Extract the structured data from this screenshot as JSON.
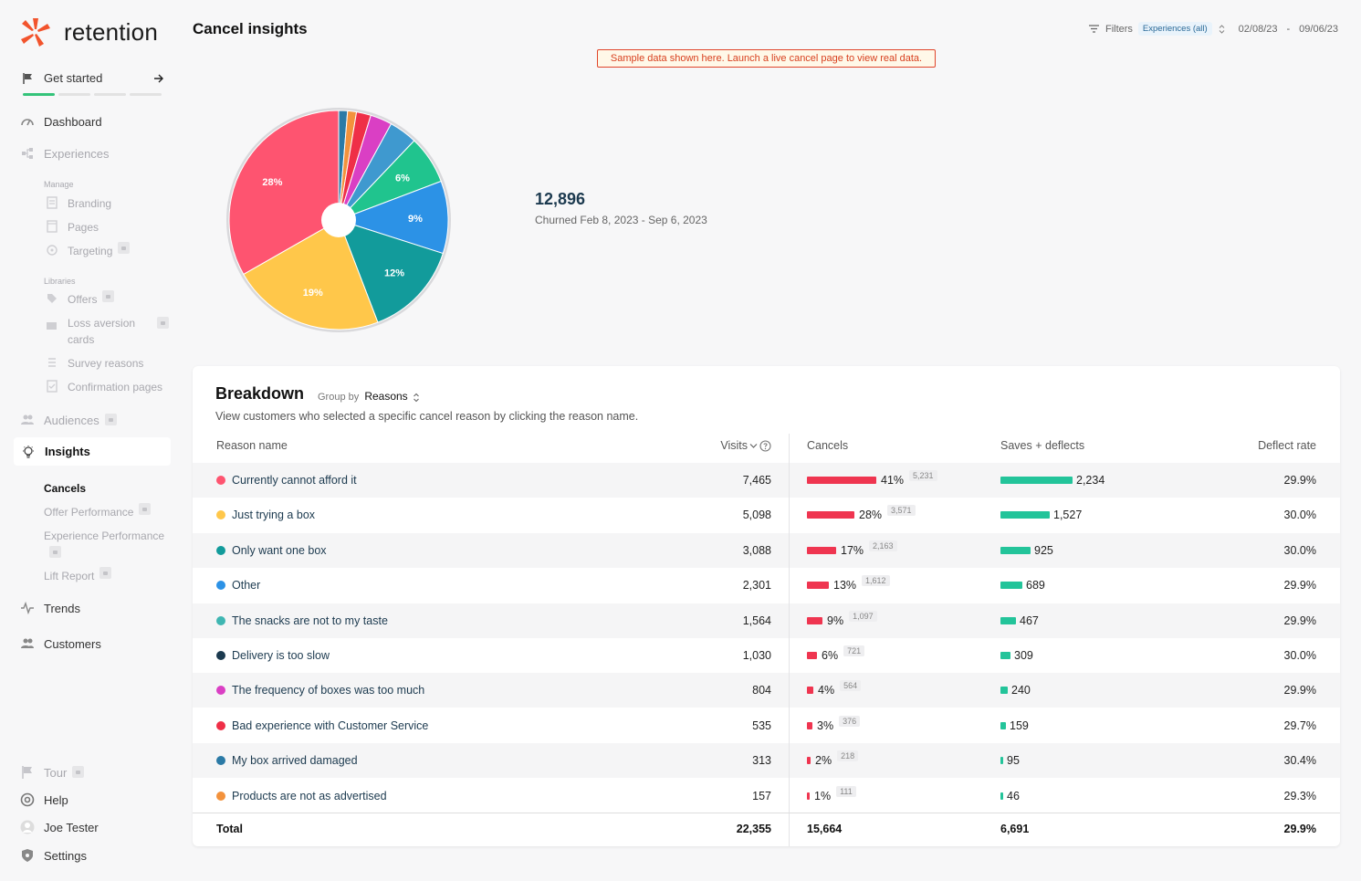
{
  "app": {
    "name": "retention",
    "brand_color": "#f2542d"
  },
  "sidebar": {
    "get_started": "Get started",
    "dashboard": "Dashboard",
    "experiences": "Experiences",
    "manage_label": "Manage",
    "branding": "Branding",
    "pages": "Pages",
    "targeting": "Targeting",
    "libraries_label": "Libraries",
    "offers": "Offers",
    "loss_aversion_1": "Loss aversion",
    "loss_aversion_2": "cards",
    "survey_reasons": "Survey reasons",
    "confirmation_pages": "Confirmation pages",
    "audiences": "Audiences",
    "insights": "Insights",
    "cancels": "Cancels",
    "offer_performance": "Offer Performance",
    "experience_performance": "Experience Performance",
    "lift_report": "Lift Report",
    "trends": "Trends",
    "customers": "Customers",
    "tour": "Tour",
    "help": "Help",
    "user": "Joe Tester",
    "settings": "Settings"
  },
  "header": {
    "title": "Cancel insights",
    "filters_label": "Filters",
    "filter_chip": "Experiences (all)",
    "date_from": "02/08/23",
    "date_sep": "-",
    "date_to": "09/06/23",
    "banner": "Sample data shown here. Launch a live cancel page to view real data."
  },
  "summary": {
    "total": "12,896",
    "subtitle": "Churned Feb 8, 2023 - Sep 6, 2023"
  },
  "chart_data": {
    "type": "pie",
    "slices": [
      {
        "label": "Currently cannot afford it",
        "value": 28,
        "color": "#fe5470",
        "shown_label": "28%"
      },
      {
        "label": "Just trying a box",
        "value": 19,
        "color": "#ffc74a",
        "shown_label": "19%"
      },
      {
        "label": "Only want one box",
        "value": 12,
        "color": "#129b9b",
        "shown_label": "12%"
      },
      {
        "label": "Other",
        "value": 9,
        "color": "#2c92e6",
        "shown_label": "9%"
      },
      {
        "label": "The snacks are not to my taste",
        "value": 6,
        "color": "#20c48e",
        "shown_label": "6%"
      },
      {
        "label": "Delivery is too slow",
        "value": 3.5,
        "color": "#3f99cf",
        "shown_label": ""
      },
      {
        "label": "The frequency of boxes was too much",
        "value": 2.7,
        "color": "#da3fc4",
        "shown_label": ""
      },
      {
        "label": "Bad experience with Customer Service",
        "value": 1.8,
        "color": "#ef2f47",
        "shown_label": ""
      },
      {
        "label": "My box arrived damaged",
        "value": 1.1,
        "color": "#f3923c",
        "shown_label": ""
      },
      {
        "label": "Products are not as advertised",
        "value": 1.1,
        "color": "#2b7aa6",
        "shown_label": ""
      }
    ]
  },
  "breakdown": {
    "title": "Breakdown",
    "group_by_label": "Group by",
    "group_by_value": "Reasons",
    "description": "View customers who selected a specific cancel reason by clicking the reason name.",
    "columns": {
      "reason": "Reason name",
      "visits": "Visits",
      "cancels": "Cancels",
      "saves": "Saves + deflects",
      "deflect": "Deflect rate"
    },
    "rows": [
      {
        "color": "#fe5470",
        "reason": "Currently cannot afford it",
        "visits": "7,465",
        "cancel_pct": "41%",
        "cancel_frac": 0.41,
        "cancel_count": "5,231",
        "saves": "2,234",
        "saves_frac": 1.0,
        "deflect": "29.9%"
      },
      {
        "color": "#ffc74a",
        "reason": "Just trying a box",
        "visits": "5,098",
        "cancel_pct": "28%",
        "cancel_frac": 0.28,
        "cancel_count": "3,571",
        "saves": "1,527",
        "saves_frac": 0.684,
        "deflect": "30.0%"
      },
      {
        "color": "#129b9b",
        "reason": "Only want one box",
        "visits": "3,088",
        "cancel_pct": "17%",
        "cancel_frac": 0.17,
        "cancel_count": "2,163",
        "saves": "925",
        "saves_frac": 0.414,
        "deflect": "30.0%"
      },
      {
        "color": "#2c92e6",
        "reason": "Other",
        "visits": "2,301",
        "cancel_pct": "13%",
        "cancel_frac": 0.13,
        "cancel_count": "1,612",
        "saves": "689",
        "saves_frac": 0.308,
        "deflect": "29.9%"
      },
      {
        "color": "#3fb6b2",
        "reason": "The snacks are not to my taste",
        "visits": "1,564",
        "cancel_pct": "9%",
        "cancel_frac": 0.09,
        "cancel_count": "1,097",
        "saves": "467",
        "saves_frac": 0.209,
        "deflect": "29.9%"
      },
      {
        "color": "#1c3a4f",
        "reason": "Delivery is too slow",
        "visits": "1,030",
        "cancel_pct": "6%",
        "cancel_frac": 0.06,
        "cancel_count": "721",
        "saves": "309",
        "saves_frac": 0.138,
        "deflect": "30.0%"
      },
      {
        "color": "#da3fc4",
        "reason": "The frequency of boxes was too much",
        "visits": "804",
        "cancel_pct": "4%",
        "cancel_frac": 0.04,
        "cancel_count": "564",
        "saves": "240",
        "saves_frac": 0.107,
        "deflect": "29.9%"
      },
      {
        "color": "#ef2f47",
        "reason": "Bad experience with Customer Service",
        "visits": "535",
        "cancel_pct": "3%",
        "cancel_frac": 0.03,
        "cancel_count": "376",
        "saves": "159",
        "saves_frac": 0.071,
        "deflect": "29.7%"
      },
      {
        "color": "#2b7aa6",
        "reason": "My box arrived damaged",
        "visits": "313",
        "cancel_pct": "2%",
        "cancel_frac": 0.02,
        "cancel_count": "218",
        "saves": "95",
        "saves_frac": 0.043,
        "deflect": "30.4%"
      },
      {
        "color": "#f3923c",
        "reason": "Products are not as advertised",
        "visits": "157",
        "cancel_pct": "1%",
        "cancel_frac": 0.01,
        "cancel_count": "111",
        "saves": "46",
        "saves_frac": 0.021,
        "deflect": "29.3%"
      }
    ],
    "total": {
      "label": "Total",
      "visits": "22,355",
      "cancels": "15,664",
      "saves": "6,691",
      "deflect": "29.9%"
    }
  }
}
